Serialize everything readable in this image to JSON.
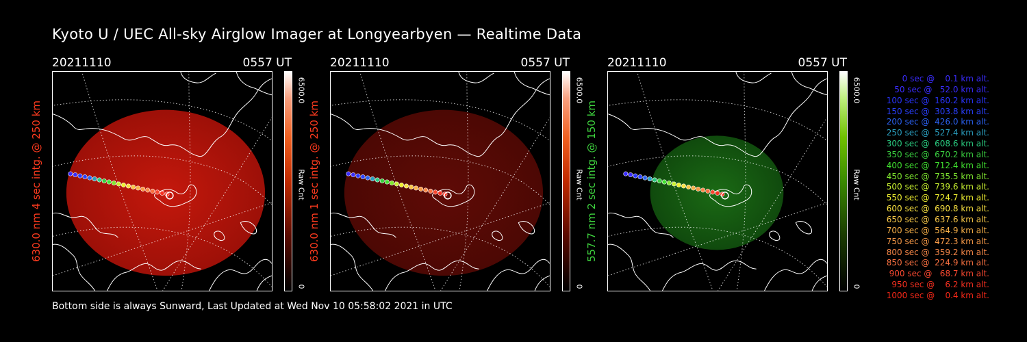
{
  "title": "Kyoto U / UEC All-sky Airglow Imager at Longyearbyen — Realtime Data",
  "footer": "Bottom side is always Sunward, Last Updated at Wed Nov 10 05:58:02 2021 in UTC",
  "panels": [
    {
      "date": "20211110",
      "time": "0557 UT",
      "side_label": "630.0 nm 4 sec intg. @ 250 km",
      "label_color": "#ff3b1f",
      "colorbar_max": "6500.0",
      "colorbar_unit": "Raw Cnt",
      "colorbar_min": "0",
      "colormap": "red",
      "airglow_level": 0.85
    },
    {
      "date": "20211110",
      "time": "0557 UT",
      "side_label": "630.0 nm 1 sec intg. @ 250 km",
      "label_color": "#ff3b1f",
      "colorbar_max": "6500.0",
      "colorbar_unit": "Raw Cnt",
      "colorbar_min": "0",
      "colormap": "red",
      "airglow_level": 0.22
    },
    {
      "date": "20211110",
      "time": "0557 UT",
      "side_label": "557.7 nm 2 sec intg. @ 150 km",
      "label_color": "#3fd63f",
      "colorbar_max": "6500.0",
      "colorbar_unit": "Raw Cnt",
      "colorbar_min": "0",
      "colormap": "green",
      "airglow_level": 0.38
    }
  ],
  "legend": [
    {
      "text": "   0 sec @    0.1 km alt.",
      "color": "#3a2cff"
    },
    {
      "text": "  50 sec @   52.0 km alt.",
      "color": "#3a2cff"
    },
    {
      "text": " 100 sec @  160.2 km alt.",
      "color": "#2a35ff"
    },
    {
      "text": " 150 sec @  303.8 km alt.",
      "color": "#2a40ff"
    },
    {
      "text": " 200 sec @  426.0 km alt.",
      "color": "#2a60f0"
    },
    {
      "text": " 250 sec @  527.4 km alt.",
      "color": "#2a9fc0"
    },
    {
      "text": " 300 sec @  608.6 km alt.",
      "color": "#2acc80"
    },
    {
      "text": " 350 sec @  670.2 km alt.",
      "color": "#3ad040"
    },
    {
      "text": " 400 sec @  712.4 km alt.",
      "color": "#40e030"
    },
    {
      "text": " 450 sec @  735.5 km alt.",
      "color": "#80e830"
    },
    {
      "text": " 500 sec @  739.6 km alt.",
      "color": "#c8f030"
    },
    {
      "text": " 550 sec @  724.7 km alt.",
      "color": "#f0f030"
    },
    {
      "text": " 600 sec @  690.8 km alt.",
      "color": "#f8e040"
    },
    {
      "text": " 650 sec @  637.6 km alt.",
      "color": "#f8c848"
    },
    {
      "text": " 700 sec @  564.9 km alt.",
      "color": "#f8b048"
    },
    {
      "text": " 750 sec @  472.3 km alt.",
      "color": "#f89a48"
    },
    {
      "text": " 800 sec @  359.2 km alt.",
      "color": "#f88848"
    },
    {
      "text": " 850 sec @  224.9 km alt.",
      "color": "#f87040"
    },
    {
      "text": " 900 sec @   68.7 km alt.",
      "color": "#f84830"
    },
    {
      "text": " 950 sec @    6.2 km alt.",
      "color": "#f83020"
    },
    {
      "text": "1000 sec @    0.4 km alt.",
      "color": "#f82818"
    }
  ]
}
